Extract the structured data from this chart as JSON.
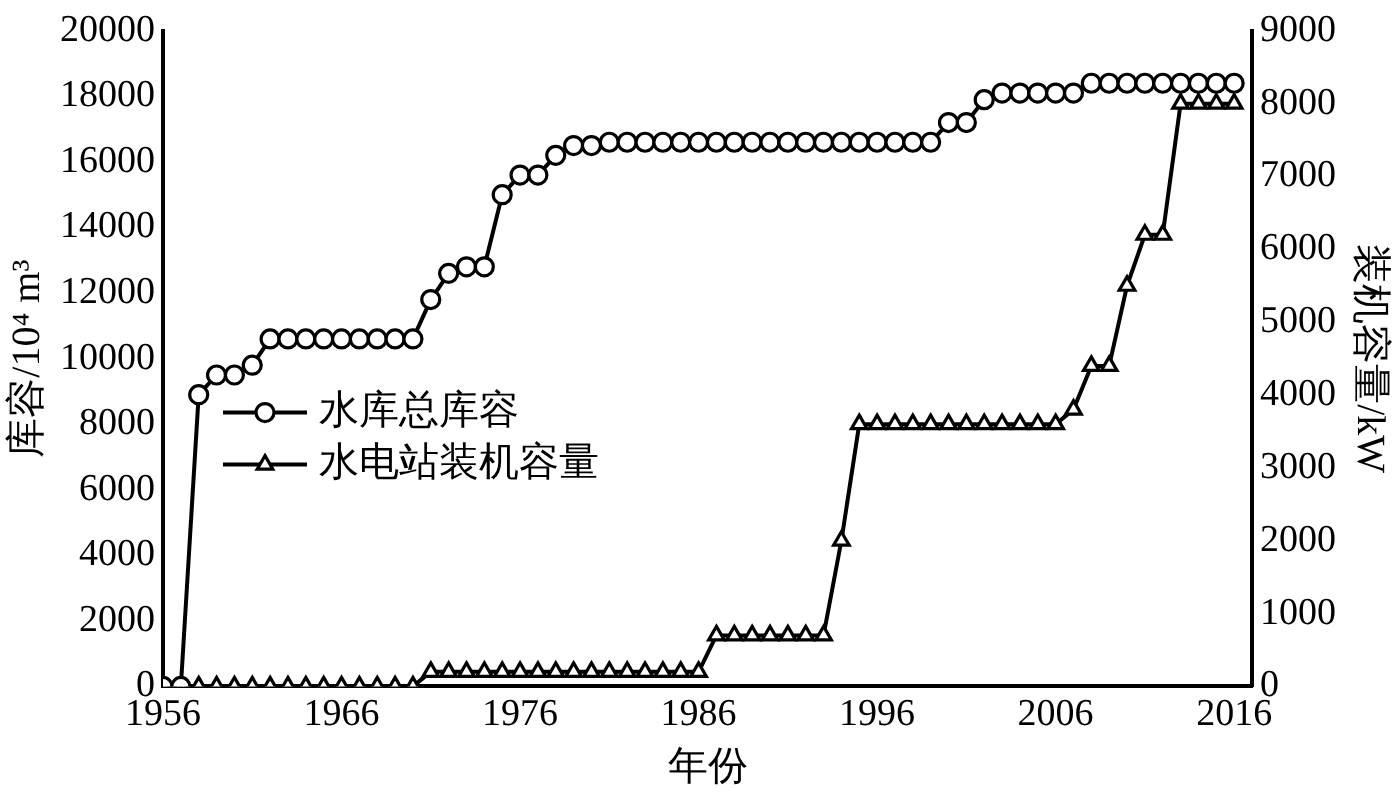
{
  "chart_data": {
    "type": "line",
    "xlabel": "年份",
    "ylabel": "库容/10⁴ m³",
    "y2label": "装机容量/kW",
    "x": [
      1956,
      1957,
      1958,
      1959,
      1960,
      1961,
      1962,
      1963,
      1964,
      1965,
      1966,
      1967,
      1968,
      1969,
      1970,
      1971,
      1972,
      1973,
      1974,
      1975,
      1976,
      1977,
      1978,
      1979,
      1980,
      1981,
      1982,
      1983,
      1984,
      1985,
      1986,
      1987,
      1988,
      1989,
      1990,
      1991,
      1992,
      1993,
      1994,
      1995,
      1996,
      1997,
      1998,
      1999,
      2000,
      2001,
      2002,
      2003,
      2004,
      2005,
      2006,
      2007,
      2008,
      2009,
      2010,
      2011,
      2012,
      2013,
      2014,
      2015,
      2016
    ],
    "series": [
      {
        "name": "水库总库容",
        "color": "#000000",
        "marker": "circle",
        "values": [
          0,
          0,
          8900,
          9500,
          9500,
          9800,
          10600,
          10600,
          10600,
          10600,
          10600,
          10600,
          10600,
          10600,
          10600,
          11800,
          12600,
          12800,
          12800,
          15000,
          15600,
          15600,
          16200,
          16500,
          16500,
          16600,
          16600,
          16600,
          16600,
          16600,
          16600,
          16600,
          16600,
          16600,
          16600,
          16600,
          16600,
          16600,
          16600,
          16600,
          16600,
          16600,
          16600,
          16600,
          17200,
          17200,
          17900,
          18100,
          18100,
          18100,
          18100,
          18100,
          18400,
          18400,
          18400,
          18400,
          18400,
          18400,
          18400,
          18400,
          18400
        ]
      },
      {
        "name": "水电站装机容量",
        "color": "#000000",
        "marker": "triangle",
        "axis": "y2",
        "values": [
          0,
          0,
          0,
          0,
          0,
          0,
          0,
          0,
          0,
          0,
          0,
          0,
          0,
          0,
          0,
          200,
          200,
          200,
          200,
          200,
          200,
          200,
          200,
          200,
          200,
          200,
          200,
          200,
          200,
          200,
          200,
          700,
          700,
          700,
          700,
          700,
          700,
          700,
          2000,
          3600,
          3600,
          3600,
          3600,
          3600,
          3600,
          3600,
          3600,
          3600,
          3600,
          3600,
          3600,
          3800,
          4400,
          4400,
          5500,
          6200,
          6200,
          8000,
          8000,
          8000,
          8000
        ]
      }
    ],
    "xlim": [
      1956,
      2017
    ],
    "xticks": [
      1956,
      1966,
      1976,
      1986,
      1996,
      2006,
      2016
    ],
    "ylim": [
      0,
      20000
    ],
    "yticks": [
      0,
      2000,
      4000,
      6000,
      8000,
      10000,
      12000,
      14000,
      16000,
      18000,
      20000
    ],
    "y2lim": [
      0,
      9000
    ],
    "y2ticks": [
      0,
      1000,
      2000,
      3000,
      4000,
      5000,
      6000,
      7000,
      8000,
      9000
    ],
    "grid": false,
    "legend": "center left",
    "line_style": "solid"
  }
}
